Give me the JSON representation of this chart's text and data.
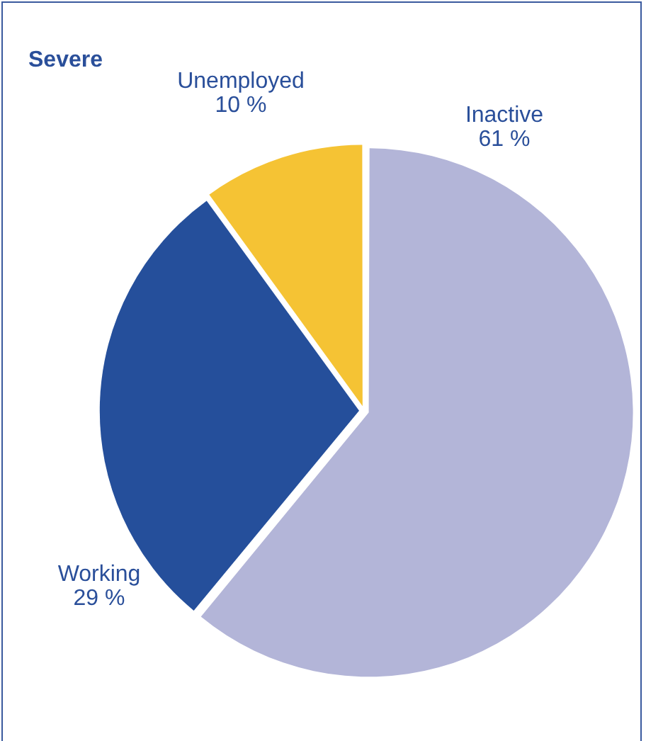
{
  "chart_data": {
    "type": "pie",
    "title": "Severe",
    "categories": [
      "Inactive",
      "Working",
      "Unemployed"
    ],
    "values": [
      61,
      29,
      10
    ],
    "colors": [
      "#b3b5d8",
      "#254f9b",
      "#f5c334"
    ],
    "value_labels": [
      "61 %",
      "29 %",
      "10 %"
    ],
    "legend": false
  }
}
